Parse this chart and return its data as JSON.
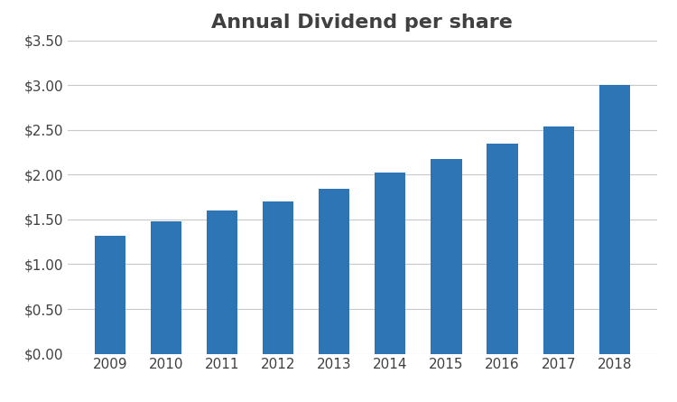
{
  "title": "Annual Dividend per share",
  "categories": [
    "2009",
    "2010",
    "2011",
    "2012",
    "2013",
    "2014",
    "2015",
    "2016",
    "2017",
    "2018"
  ],
  "values": [
    1.32,
    1.48,
    1.6,
    1.7,
    1.84,
    2.02,
    2.17,
    2.35,
    2.54,
    3.0
  ],
  "bar_color": "#2E75B6",
  "ylim": [
    0,
    3.5
  ],
  "yticks": [
    0.0,
    0.5,
    1.0,
    1.5,
    2.0,
    2.5,
    3.0,
    3.5
  ],
  "title_fontsize": 16,
  "tick_fontsize": 11,
  "background_color": "#ffffff",
  "grid_color": "#c8c8c8",
  "title_color": "#404040",
  "tick_color": "#404040",
  "bar_width": 0.55
}
